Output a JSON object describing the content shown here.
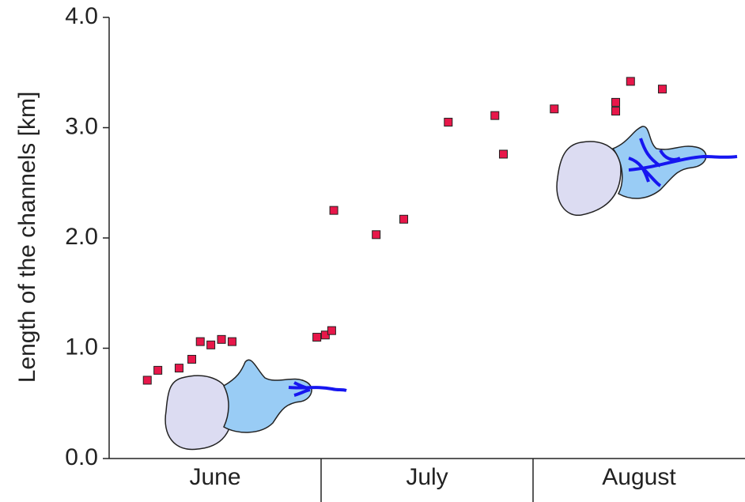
{
  "chart_data": {
    "type": "scatter",
    "y_label": "Length of the channels [km]",
    "categories": [
      "June",
      "July",
      "August"
    ],
    "xlim": [
      0,
      3
    ],
    "ylim": [
      0,
      4
    ],
    "yticks": [
      {
        "value": 0,
        "label": "0.0"
      },
      {
        "value": 1,
        "label": "1.0"
      },
      {
        "value": 2,
        "label": "2.0"
      },
      {
        "value": 3,
        "label": "3.0"
      },
      {
        "value": 4,
        "label": "4.0"
      }
    ],
    "color": "#e8174a",
    "x": [
      0.18,
      0.23,
      0.33,
      0.39,
      0.43,
      0.48,
      0.53,
      0.58,
      0.98,
      1.02,
      1.05,
      1.06,
      1.26,
      1.39,
      1.6,
      1.82,
      1.86,
      2.1,
      2.39,
      2.39,
      2.46,
      2.61
    ],
    "values": [
      0.71,
      0.8,
      0.82,
      0.9,
      1.06,
      1.03,
      1.08,
      1.06,
      1.1,
      1.12,
      1.16,
      2.25,
      2.03,
      2.17,
      3.05,
      3.11,
      2.76,
      3.17,
      3.23,
      3.15,
      3.42,
      3.35
    ]
  }
}
